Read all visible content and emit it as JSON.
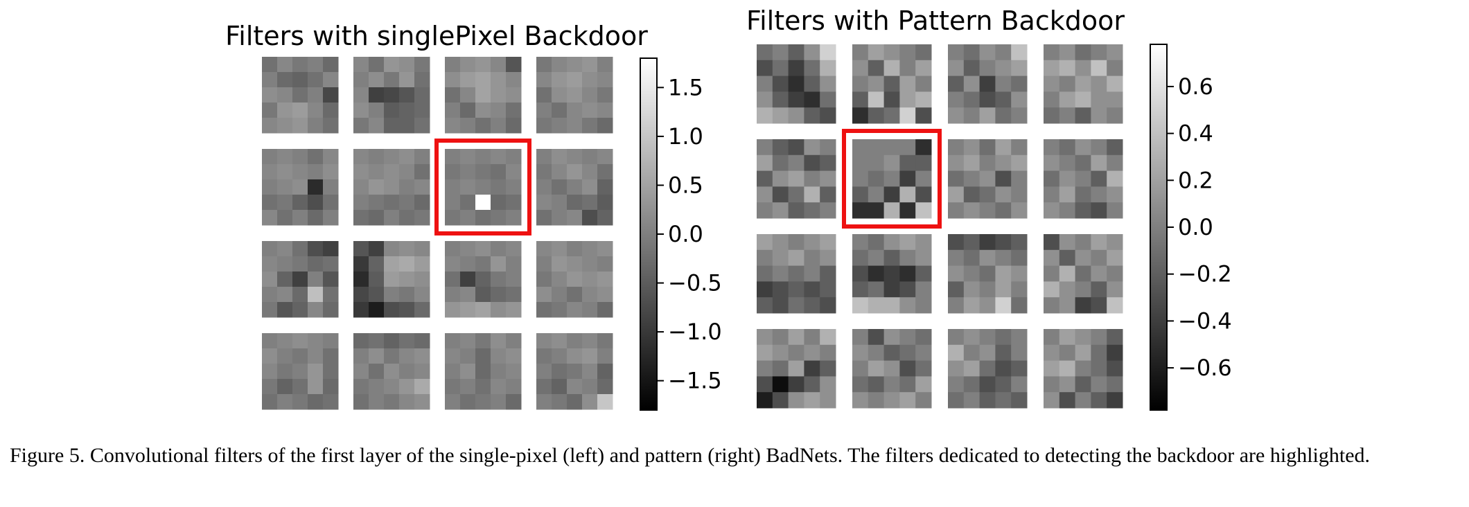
{
  "left_panel": {
    "title": "Filters with singlePixel Backdoor",
    "highlighted_filter": {
      "row": 1,
      "col": 2
    },
    "colorbar": {
      "min": -1.8,
      "max": 1.8,
      "ticks": [
        1.5,
        1.0,
        0.5,
        0.0,
        -0.5,
        -1.0,
        -1.5
      ],
      "tick_labels": [
        "1.5",
        "1.0",
        "0.5",
        "0.0",
        "−0.5",
        "−1.0",
        "−1.5"
      ]
    },
    "filters": [
      [
        [
          [
            -0.2,
            0.1,
            -0.1,
            0.0,
            -0.3
          ],
          [
            0.0,
            -0.3,
            -0.4,
            -0.2,
            0.1
          ],
          [
            0.2,
            0.1,
            -0.2,
            0.0,
            -0.8
          ],
          [
            -0.1,
            0.3,
            0.4,
            0.1,
            -0.3
          ],
          [
            0.1,
            0.2,
            0.3,
            0.0,
            -0.2
          ]
        ],
        [
          [
            0.1,
            -0.2,
            0.3,
            0.2,
            -0.1
          ],
          [
            0.0,
            0.2,
            -0.1,
            0.3,
            -0.2
          ],
          [
            0.1,
            -0.9,
            -0.8,
            -0.6,
            -0.3
          ],
          [
            0.2,
            0.0,
            -0.5,
            -0.4,
            -0.3
          ],
          [
            -0.1,
            0.1,
            -0.4,
            -0.4,
            -0.2
          ]
        ],
        [
          [
            0.0,
            0.2,
            0.3,
            0.1,
            -0.6
          ],
          [
            0.2,
            0.4,
            0.5,
            0.3,
            0.1
          ],
          [
            -0.2,
            0.1,
            0.5,
            0.3,
            0.2
          ],
          [
            0.0,
            -0.3,
            0.2,
            0.1,
            -0.2
          ],
          [
            0.1,
            0.0,
            -0.2,
            0.0,
            -0.3
          ]
        ],
        [
          [
            -0.1,
            0.1,
            0.2,
            0.3,
            0.0
          ],
          [
            0.1,
            0.3,
            0.4,
            0.2,
            0.1
          ],
          [
            -0.2,
            0.2,
            0.3,
            0.1,
            -0.1
          ],
          [
            0.0,
            -0.2,
            0.1,
            0.2,
            0.1
          ],
          [
            -0.1,
            0.0,
            0.1,
            -0.1,
            -0.3
          ]
        ]
      ],
      [
        [
          [
            0.0,
            0.1,
            0.0,
            -0.2,
            0.1
          ],
          [
            0.1,
            0.2,
            0.1,
            0.0,
            0.2
          ],
          [
            0.0,
            0.1,
            0.2,
            -1.2,
            0.0
          ],
          [
            -0.2,
            -0.1,
            -0.4,
            -0.7,
            -0.2
          ],
          [
            0.1,
            -0.2,
            0.0,
            -0.3,
            0.0
          ]
        ],
        [
          [
            0.1,
            0.0,
            0.1,
            0.2,
            0.0
          ],
          [
            0.2,
            0.1,
            0.2,
            0.1,
            -0.2
          ],
          [
            0.1,
            0.3,
            0.2,
            0.0,
            0.1
          ],
          [
            0.0,
            -0.1,
            -0.2,
            -0.1,
            -0.3
          ],
          [
            -0.2,
            -0.3,
            0.0,
            -0.2,
            -0.1
          ]
        ],
        [
          [
            0.0,
            0.1,
            0.0,
            0.1,
            0.0
          ],
          [
            -0.1,
            0.0,
            -0.1,
            -0.2,
            0.1
          ],
          [
            0.0,
            0.1,
            0.0,
            -0.1,
            0.0
          ],
          [
            0.0,
            -0.2,
            1.8,
            -0.3,
            -0.2
          ],
          [
            -0.1,
            0.0,
            -0.2,
            -0.1,
            0.0
          ]
        ],
        [
          [
            0.0,
            0.2,
            0.1,
            0.0,
            0.1
          ],
          [
            -0.1,
            0.1,
            0.3,
            0.1,
            -0.2
          ],
          [
            0.0,
            -0.2,
            0.0,
            0.2,
            -0.4
          ],
          [
            0.1,
            0.0,
            -0.3,
            -0.2,
            -0.5
          ],
          [
            -0.2,
            0.0,
            0.1,
            -0.7,
            -0.4
          ]
        ]
      ],
      [
        [
          [
            0.0,
            0.1,
            -0.2,
            -0.7,
            -0.9
          ],
          [
            0.1,
            0.0,
            -0.1,
            -0.3,
            -0.2
          ],
          [
            0.2,
            -0.4,
            -0.9,
            0.0,
            -0.6
          ],
          [
            0.0,
            0.1,
            -0.3,
            0.9,
            -0.2
          ],
          [
            -0.1,
            -0.6,
            -0.4,
            0.1,
            -0.3
          ]
        ],
        [
          [
            -0.6,
            -0.9,
            0.1,
            0.2,
            0.1
          ],
          [
            -1.0,
            -0.4,
            0.5,
            0.6,
            0.4
          ],
          [
            -1.2,
            -0.5,
            0.4,
            0.3,
            0.2
          ],
          [
            -0.8,
            -0.6,
            0.0,
            -0.1,
            0.1
          ],
          [
            -1.0,
            -1.4,
            -0.7,
            -0.6,
            -0.3
          ]
        ],
        [
          [
            0.0,
            0.1,
            0.2,
            0.0,
            0.1
          ],
          [
            0.1,
            0.0,
            -0.1,
            0.3,
            0.0
          ],
          [
            -0.2,
            -0.9,
            -0.4,
            -0.1,
            0.0
          ],
          [
            0.0,
            0.1,
            -0.5,
            -0.3,
            -0.2
          ],
          [
            0.3,
            0.4,
            0.5,
            0.2,
            0.3
          ]
        ],
        [
          [
            0.1,
            0.2,
            0.0,
            0.1,
            0.2
          ],
          [
            0.0,
            0.3,
            0.2,
            0.1,
            0.0
          ],
          [
            -0.1,
            0.1,
            0.3,
            0.2,
            0.3
          ],
          [
            0.2,
            0.0,
            -0.2,
            0.1,
            0.2
          ],
          [
            -0.2,
            -0.1,
            0.1,
            0.0,
            -0.3
          ]
        ]
      ],
      [
        [
          [
            0.0,
            0.1,
            0.2,
            0.1,
            0.0
          ],
          [
            0.2,
            0.0,
            -0.1,
            0.1,
            -0.2
          ],
          [
            0.1,
            -0.1,
            0.0,
            0.3,
            -0.2
          ],
          [
            -0.1,
            -0.4,
            -0.2,
            0.3,
            -0.3
          ],
          [
            -0.2,
            0.0,
            -0.1,
            -0.3,
            -0.2
          ]
        ],
        [
          [
            -0.3,
            -0.2,
            -0.4,
            -0.2,
            -0.3
          ],
          [
            0.0,
            0.2,
            -0.1,
            0.1,
            0.2
          ],
          [
            0.1,
            -0.2,
            0.2,
            0.0,
            0.1
          ],
          [
            -0.1,
            0.0,
            0.1,
            0.3,
            0.6
          ],
          [
            -0.2,
            0.0,
            -0.1,
            0.1,
            0.2
          ]
        ],
        [
          [
            0.0,
            0.1,
            -0.1,
            0.2,
            0.0
          ],
          [
            0.1,
            0.0,
            -0.3,
            0.1,
            0.2
          ],
          [
            0.0,
            0.2,
            -0.3,
            0.0,
            0.1
          ],
          [
            -0.1,
            0.0,
            -0.2,
            0.1,
            0.0
          ],
          [
            0.0,
            -0.2,
            -0.1,
            0.0,
            -0.3
          ]
        ],
        [
          [
            0.1,
            0.2,
            0.0,
            0.1,
            -0.1
          ],
          [
            -0.1,
            0.0,
            0.2,
            0.3,
            0.0
          ],
          [
            0.0,
            -0.2,
            -0.1,
            0.1,
            -0.4
          ],
          [
            -0.2,
            -0.4,
            0.1,
            0.0,
            -0.3
          ],
          [
            0.0,
            -0.1,
            -0.3,
            0.2,
            1.0
          ]
        ]
      ]
    ]
  },
  "right_panel": {
    "title": "Filters with Pattern Backdoor",
    "highlighted_filter": {
      "row": 1,
      "col": 1
    },
    "colorbar": {
      "min": -0.78,
      "max": 0.78,
      "ticks": [
        0.6,
        0.4,
        0.2,
        0.0,
        -0.2,
        -0.4,
        -0.6
      ],
      "tick_labels": [
        "0.6",
        "0.4",
        "0.2",
        "0.0",
        "−0.2",
        "−0.4",
        "−0.6"
      ]
    },
    "filters": [
      [
        [
          [
            -0.1,
            0.0,
            -0.2,
            0.1,
            0.5
          ],
          [
            -0.3,
            -0.1,
            -0.4,
            -0.1,
            0.3
          ],
          [
            0.0,
            -0.3,
            -0.5,
            -0.2,
            0.1
          ],
          [
            0.1,
            -0.2,
            -0.4,
            -0.5,
            -0.1
          ],
          [
            0.3,
            0.2,
            0.1,
            -0.2,
            -0.3
          ]
        ],
        [
          [
            0.0,
            0.2,
            0.1,
            0.0,
            -0.1
          ],
          [
            0.1,
            -0.2,
            0.3,
            0.0,
            0.2
          ],
          [
            0.0,
            0.1,
            -0.2,
            0.2,
            0.0
          ],
          [
            -0.2,
            0.4,
            -0.3,
            0.2,
            0.3
          ],
          [
            -0.5,
            -0.2,
            -0.1,
            0.5,
            -0.3
          ]
        ],
        [
          [
            0.0,
            -0.1,
            0.1,
            0.0,
            0.4
          ],
          [
            0.1,
            -0.2,
            0.0,
            0.1,
            0.2
          ],
          [
            -0.2,
            0.1,
            -0.4,
            0.0,
            -0.1
          ],
          [
            0.0,
            -0.1,
            -0.3,
            -0.2,
            0.1
          ],
          [
            0.1,
            0.0,
            0.2,
            -0.1,
            0.0
          ]
        ],
        [
          [
            0.0,
            0.1,
            -0.1,
            0.0,
            0.1
          ],
          [
            0.2,
            0.3,
            0.1,
            0.4,
            0.0
          ],
          [
            0.1,
            0.0,
            0.2,
            0.1,
            0.3
          ],
          [
            0.0,
            0.2,
            0.3,
            0.1,
            0.1
          ],
          [
            -0.1,
            0.0,
            -0.2,
            0.1,
            0.0
          ]
        ]
      ],
      [
        [
          [
            0.0,
            -0.2,
            -0.3,
            0.1,
            0.0
          ],
          [
            0.2,
            -0.1,
            0.0,
            -0.3,
            -0.2
          ],
          [
            -0.2,
            0.1,
            0.2,
            0.0,
            0.1
          ],
          [
            0.1,
            -0.3,
            -0.1,
            0.3,
            -0.2
          ],
          [
            0.0,
            0.1,
            -0.2,
            -0.1,
            0.0
          ]
        ],
        [
          [
            0.0,
            0.0,
            0.0,
            0.0,
            -0.5
          ],
          [
            0.0,
            0.0,
            0.1,
            -0.2,
            -0.2
          ],
          [
            0.0,
            -0.1,
            0.0,
            -0.4,
            0.0
          ],
          [
            -0.2,
            0.0,
            -0.4,
            0.3,
            -0.3
          ],
          [
            -0.5,
            -0.5,
            0.3,
            -0.5,
            0.4
          ]
        ],
        [
          [
            0.0,
            0.1,
            -0.1,
            0.2,
            0.0
          ],
          [
            0.1,
            0.2,
            0.0,
            0.1,
            0.2
          ],
          [
            -0.1,
            0.0,
            0.1,
            -0.3,
            0.0
          ],
          [
            0.2,
            -0.2,
            -0.1,
            0.1,
            0.0
          ],
          [
            0.0,
            0.1,
            0.0,
            -0.1,
            0.1
          ]
        ],
        [
          [
            0.0,
            -0.1,
            0.1,
            0.0,
            -0.2
          ],
          [
            0.1,
            0.0,
            -0.1,
            0.2,
            0.0
          ],
          [
            -0.1,
            0.1,
            0.0,
            -0.2,
            0.3
          ],
          [
            0.0,
            0.2,
            -0.1,
            0.0,
            0.1
          ],
          [
            0.1,
            0.0,
            -0.2,
            -0.3,
            0.0
          ]
        ]
      ],
      [
        [
          [
            0.2,
            0.1,
            0.0,
            0.1,
            0.2
          ],
          [
            0.0,
            0.1,
            0.2,
            0.0,
            0.1
          ],
          [
            -0.1,
            0.0,
            -0.1,
            0.0,
            -0.2
          ],
          [
            -0.4,
            -0.3,
            -0.2,
            -0.3,
            -0.2
          ],
          [
            -0.2,
            -0.3,
            -0.1,
            -0.2,
            -0.3
          ]
        ],
        [
          [
            0.0,
            -0.1,
            0.1,
            0.2,
            0.1
          ],
          [
            -0.1,
            0.0,
            -0.2,
            0.0,
            0.1
          ],
          [
            -0.3,
            -0.5,
            -0.4,
            -0.5,
            -0.2
          ],
          [
            -0.2,
            -0.1,
            -0.4,
            -0.3,
            0.0
          ],
          [
            0.4,
            0.3,
            0.3,
            0.1,
            0.0
          ]
        ],
        [
          [
            -0.3,
            -0.2,
            -0.4,
            -0.3,
            -0.2
          ],
          [
            0.0,
            -0.1,
            0.1,
            0.0,
            -0.1
          ],
          [
            0.1,
            0.0,
            -0.1,
            0.2,
            0.1
          ],
          [
            -0.2,
            0.1,
            0.0,
            0.2,
            0.0
          ],
          [
            0.0,
            0.2,
            0.1,
            0.5,
            -0.1
          ]
        ],
        [
          [
            -0.3,
            0.1,
            0.0,
            0.2,
            0.1
          ],
          [
            0.1,
            -0.2,
            0.1,
            0.0,
            0.2
          ],
          [
            0.0,
            0.3,
            -0.1,
            0.1,
            0.0
          ],
          [
            0.3,
            0.1,
            0.0,
            -0.2,
            0.1
          ],
          [
            0.0,
            0.1,
            -0.4,
            -0.3,
            0.4
          ]
        ]
      ],
      [
        [
          [
            0.1,
            0.0,
            0.2,
            0.0,
            0.3
          ],
          [
            0.2,
            0.1,
            0.0,
            0.1,
            0.0
          ],
          [
            0.0,
            -0.1,
            0.2,
            -0.4,
            -0.2
          ],
          [
            -0.3,
            -0.7,
            -0.4,
            -0.2,
            0.1
          ],
          [
            -0.6,
            -0.3,
            0.1,
            0.2,
            0.1
          ]
        ],
        [
          [
            0.0,
            -0.3,
            0.1,
            0.0,
            -0.1
          ],
          [
            0.1,
            0.0,
            -0.2,
            -0.1,
            0.0
          ],
          [
            0.0,
            0.2,
            0.1,
            -0.3,
            -0.1
          ],
          [
            -0.1,
            -0.2,
            0.0,
            -0.1,
            0.2
          ],
          [
            0.1,
            0.0,
            0.1,
            0.2,
            0.0
          ]
        ],
        [
          [
            0.0,
            0.1,
            0.0,
            -0.1,
            0.0
          ],
          [
            0.3,
            0.0,
            0.1,
            -0.2,
            0.0
          ],
          [
            0.1,
            0.2,
            -0.1,
            -0.3,
            -0.2
          ],
          [
            0.0,
            -0.1,
            -0.3,
            -0.2,
            0.0
          ],
          [
            -0.1,
            0.0,
            -0.2,
            -0.1,
            -0.2
          ]
        ],
        [
          [
            0.0,
            0.2,
            0.1,
            0.0,
            -0.2
          ],
          [
            0.1,
            0.0,
            0.2,
            -0.1,
            -0.4
          ],
          [
            0.2,
            0.3,
            0.0,
            -0.1,
            -0.3
          ],
          [
            0.0,
            0.1,
            -0.2,
            0.0,
            -0.1
          ],
          [
            0.1,
            -0.3,
            0.0,
            -0.2,
            -0.4
          ]
        ]
      ]
    ]
  },
  "caption": "Figure 5. Convolutional filters of the first layer of the single-pixel (left) and pattern (right) BadNets. The filters dedicated to detecting the backdoor are highlighted."
}
